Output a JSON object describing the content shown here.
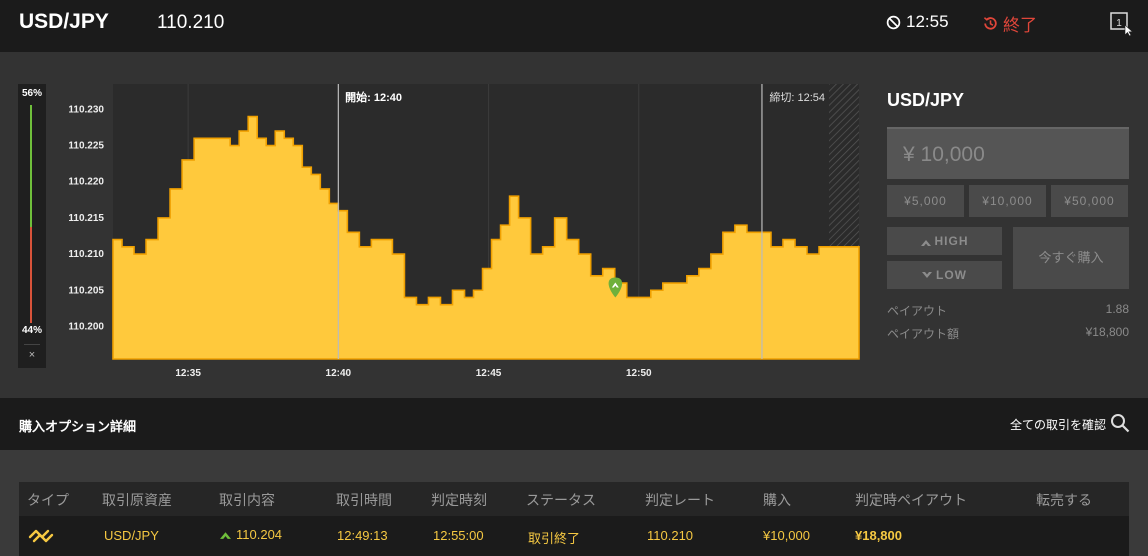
{
  "header": {
    "pair": "USD/JPY",
    "price": "110.210",
    "clock": "12:55",
    "status": "終了"
  },
  "gauge": {
    "up_percent_label": "56%",
    "down_percent_label": "44%",
    "up_fraction": 0.56,
    "close_symbol": "×"
  },
  "chart_data": {
    "type": "area",
    "start_label": "開始: 12:40",
    "end_label": "締切: 12:54",
    "y_ticks": [
      "110.230",
      "110.225",
      "110.220",
      "110.215",
      "110.210",
      "110.205",
      "110.200"
    ],
    "x_ticks": [
      "12:35",
      "12:40",
      "12:45",
      "12:50"
    ],
    "ylim": [
      110.1955,
      110.2335
    ],
    "x_minutes_range": [
      32.5,
      57.33
    ],
    "entry_point": {
      "minute": 49.22,
      "value": 110.204
    },
    "series": [
      {
        "values_minutes": [
          32.5,
          32.8,
          33.2,
          33.6,
          34.0,
          34.4,
          34.8,
          35.2,
          35.6,
          36.0,
          36.4,
          36.7,
          37.0,
          37.3,
          37.6,
          37.9,
          38.2,
          38.5,
          38.8,
          39.1,
          39.4,
          39.7,
          40.0,
          40.3,
          40.7,
          41.1,
          41.5,
          41.8,
          42.2,
          42.6,
          43.0,
          43.4,
          43.8,
          44.2,
          44.5,
          44.8,
          45.1,
          45.4,
          45.7,
          46.0,
          46.4,
          46.8,
          47.2,
          47.6,
          48.0,
          48.4,
          48.8,
          49.2,
          49.6,
          50.0,
          50.4,
          50.8,
          51.2,
          51.6,
          52.0,
          52.4,
          52.8,
          53.2,
          53.6,
          54.0,
          54.4,
          54.8,
          55.2,
          55.6,
          56.0,
          56.4,
          56.8,
          57.33
        ],
        "values": [
          110.212,
          110.211,
          110.21,
          110.212,
          110.215,
          110.219,
          110.223,
          110.226,
          110.226,
          110.226,
          110.225,
          110.227,
          110.229,
          110.226,
          110.225,
          110.227,
          110.226,
          110.225,
          110.222,
          110.221,
          110.219,
          110.217,
          110.216,
          110.213,
          110.211,
          110.212,
          110.212,
          110.21,
          110.204,
          110.203,
          110.204,
          110.203,
          110.205,
          110.204,
          110.205,
          110.208,
          110.212,
          110.214,
          110.218,
          110.215,
          110.21,
          110.211,
          110.215,
          110.212,
          110.21,
          110.207,
          110.208,
          110.206,
          110.204,
          110.204,
          110.205,
          110.206,
          110.206,
          110.207,
          110.208,
          110.21,
          110.213,
          110.214,
          110.213,
          110.213,
          110.211,
          110.212,
          110.211,
          110.21,
          110.211,
          110.211,
          110.211,
          110.21
        ]
      }
    ]
  },
  "side": {
    "title": "USD/JPY",
    "amount_placeholder": "¥ 10,000",
    "presets": [
      "¥5,000",
      "¥10,000",
      "¥50,000"
    ],
    "high_label": "HIGH",
    "low_label": "LOW",
    "buy_label": "今すぐ購入",
    "payout_label": "ペイアウト",
    "payout_value": "1.88",
    "payout_amount_label": "ペイアウト額",
    "payout_amount_value": "¥18,800"
  },
  "details": {
    "label": "購入オプション詳細",
    "all_link": "全ての取引を確認"
  },
  "table": {
    "headers": [
      "タイプ",
      "取引原資産",
      "取引内容",
      "取引時間",
      "判定時刻",
      "ステータス",
      "判定レート",
      "購入",
      "判定時ペイアウト",
      "転売する"
    ],
    "row": {
      "asset": "USD/JPY",
      "content": "110.204",
      "trade_time": "12:49:13",
      "judge_time": "12:55:00",
      "status": "取引終了",
      "judge_rate": "110.210",
      "purchase": "¥10,000",
      "payout": "¥18,800"
    }
  },
  "colors": {
    "accent_yellow": "#ffc93c",
    "area_edge": "#f0a000",
    "up_green": "#6fbf3b",
    "down_red": "#d9533a",
    "end_red": "#e0463a"
  }
}
